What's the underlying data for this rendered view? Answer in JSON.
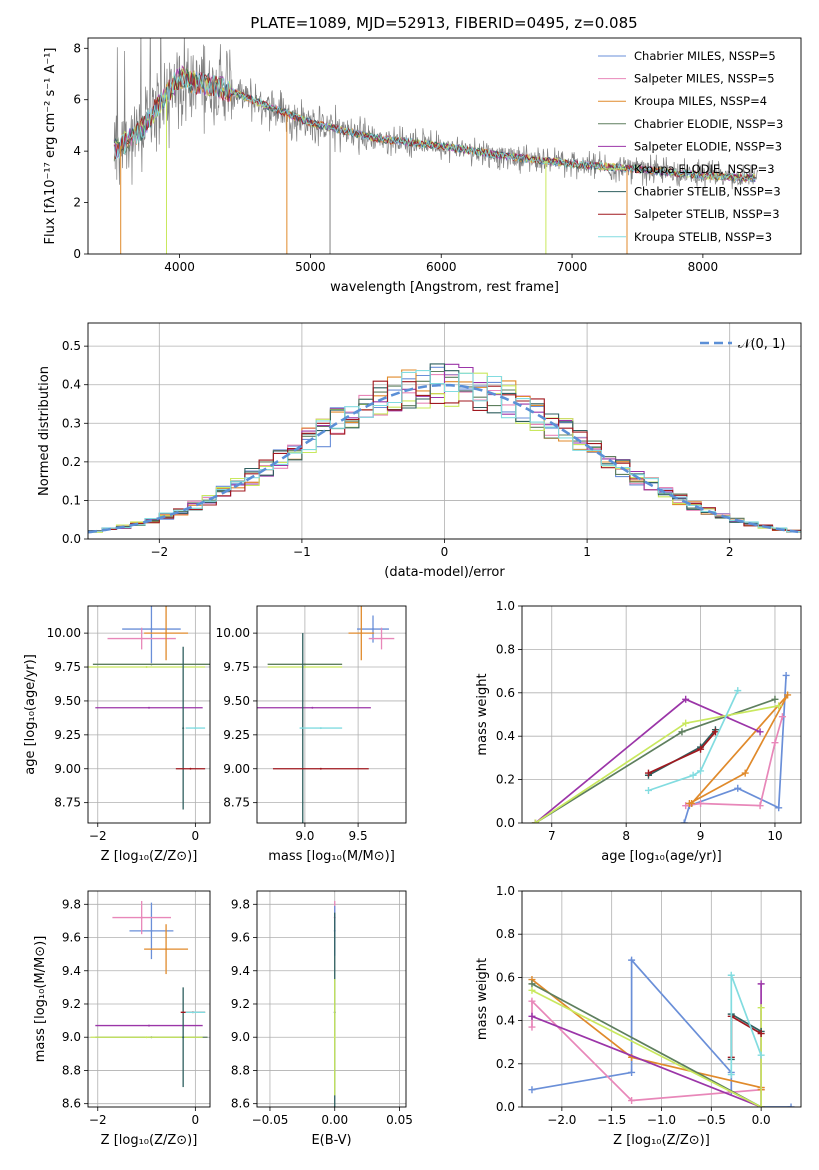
{
  "chart_data": [
    {
      "type": "line",
      "title": "PLATE=1089, MJD=52913, FIBERID=0495, z=0.085",
      "xlabel": "wavelength [Angstrom, rest frame]",
      "ylabel": "Flux [fλ10⁻¹⁷ erg cm⁻² s⁻¹ A⁻¹]",
      "xlim": [
        3300,
        8750
      ],
      "ylim": [
        0,
        8.4
      ],
      "xticks": [
        "4000",
        "5000",
        "6000",
        "7000",
        "8000"
      ],
      "yticks": [
        "0",
        "2",
        "4",
        "6",
        "8"
      ],
      "legend_position": "top-right",
      "series": [
        {
          "name": "Chabrier MILES, NSSP=5",
          "color": "#6a8fd8"
        },
        {
          "name": "Salpeter MILES, NSSP=5",
          "color": "#e887b9"
        },
        {
          "name": "Kroupa MILES, NSSP=4",
          "color": "#e08a2b"
        },
        {
          "name": "Chabrier ELODIE, NSSP=3",
          "color": "#5e7f5e"
        },
        {
          "name": "Salpeter ELODIE, NSSP=3",
          "color": "#9b35a8"
        },
        {
          "name": "Kroupa ELODIE, NSSP=3",
          "color": "#c9e85e"
        },
        {
          "name": "Chabrier STELIB, NSSP=3",
          "color": "#2f5f5f"
        },
        {
          "name": "Salpeter STELIB, NSSP=3",
          "color": "#a0181f"
        },
        {
          "name": "Kroupa STELIB, NSSP=3",
          "color": "#82dce0"
        }
      ],
      "continuum_model": {
        "x": [
          3500,
          3700,
          3900,
          4000,
          4100,
          4300,
          4500,
          5000,
          5500,
          6000,
          6500,
          7000,
          7500,
          8000,
          8400
        ],
        "y": [
          4.0,
          4.8,
          6.2,
          6.9,
          6.7,
          6.5,
          6.1,
          5.1,
          4.5,
          4.2,
          3.8,
          3.5,
          3.3,
          3.05,
          2.95
        ]
      }
    },
    {
      "type": "line",
      "xlabel": "(data-model)/error",
      "ylabel": "Normed distribution",
      "xlim": [
        -2.5,
        2.5
      ],
      "ylim": [
        0,
        0.56
      ],
      "xticks": [
        "−2",
        "−1",
        "0",
        "1",
        "2"
      ],
      "yticks": [
        "0.0",
        "0.1",
        "0.2",
        "0.3",
        "0.4",
        "0.5"
      ],
      "legend": "𝒩(0, 1)",
      "legend_position": "top-right",
      "bins_step": 0.1
    },
    {
      "type": "scatter",
      "xlabel": "Z [log₁₀(Z/Z⊙)]",
      "ylabel": "age  [log₁₀(age/yr)]",
      "xlim": [
        -2.2,
        0.3
      ],
      "ylim": [
        8.6,
        10.2
      ],
      "xticks": [
        "−2",
        "0"
      ],
      "yticks": [
        "8.75",
        "9.00",
        "9.25",
        "9.50",
        "9.75",
        "10.00"
      ],
      "points": [
        {
          "x": -0.9,
          "y": 10.03,
          "xerr": 0.6,
          "yerr": 0.25,
          "color": "#6a8fd8"
        },
        {
          "x": -1.1,
          "y": 9.96,
          "xerr": 0.7,
          "yerr": 0.08,
          "color": "#e887b9"
        },
        {
          "x": -0.6,
          "y": 10.0,
          "xerr": 0.45,
          "yerr": 0.2,
          "color": "#e08a2b"
        },
        {
          "x": -0.9,
          "y": 9.77,
          "xerr": 1.2,
          "yerr": 0.0,
          "color": "#5e7f5e"
        },
        {
          "x": -0.95,
          "y": 9.45,
          "xerr": 1.1,
          "yerr": 0.0,
          "color": "#9b35a8"
        },
        {
          "x": -1.0,
          "y": 9.75,
          "xerr": 1.2,
          "yerr": 0.0,
          "color": "#c9e85e"
        },
        {
          "x": -0.25,
          "y": 9.3,
          "xerr": 0.0,
          "yerr": 0.6,
          "color": "#2f5f5f"
        },
        {
          "x": -0.1,
          "y": 9.0,
          "xerr": 0.3,
          "yerr": 0.0,
          "color": "#a0181f"
        },
        {
          "x": 0.0,
          "y": 9.3,
          "xerr": 0.2,
          "yerr": 0.0,
          "color": "#82dce0"
        }
      ]
    },
    {
      "type": "scatter",
      "xlabel": "mass [log₁₀(M/M⊙)]",
      "xlim": [
        8.55,
        9.95
      ],
      "ylim": [
        8.6,
        10.2
      ],
      "xticks": [
        "9.0",
        "9.5"
      ],
      "yticks": [
        "8.75",
        "9.00",
        "9.25",
        "9.50",
        "9.75",
        "10.00"
      ],
      "points": [
        {
          "x": 9.64,
          "y": 10.03,
          "xerr": 0.15,
          "yerr": 0.1,
          "color": "#6a8fd8"
        },
        {
          "x": 9.72,
          "y": 9.96,
          "xerr": 0.12,
          "yerr": 0.08,
          "color": "#e887b9"
        },
        {
          "x": 9.53,
          "y": 10.0,
          "xerr": 0.12,
          "yerr": 0.2,
          "color": "#e08a2b"
        },
        {
          "x": 9.0,
          "y": 9.77,
          "xerr": 0.35,
          "yerr": 0.0,
          "color": "#5e7f5e"
        },
        {
          "x": 9.07,
          "y": 9.45,
          "xerr": 0.55,
          "yerr": 0.0,
          "color": "#9b35a8"
        },
        {
          "x": 9.0,
          "y": 9.75,
          "xerr": 0.35,
          "yerr": 0.0,
          "color": "#c9e85e"
        },
        {
          "x": 8.98,
          "y": 9.3,
          "xerr": 0.0,
          "yerr": 0.7,
          "color": "#2f5f5f"
        },
        {
          "x": 9.15,
          "y": 9.0,
          "xerr": 0.45,
          "yerr": 0.0,
          "color": "#a0181f"
        },
        {
          "x": 9.15,
          "y": 9.3,
          "xerr": 0.2,
          "yerr": 0.0,
          "color": "#82dce0"
        }
      ]
    },
    {
      "type": "line",
      "xlabel": "age  [log₁₀(age/yr)]",
      "ylabel": "mass weight",
      "xlim": [
        6.6,
        10.35
      ],
      "ylim": [
        0,
        1.0
      ],
      "xticks": [
        "7",
        "8",
        "9",
        "10"
      ],
      "yticks": [
        "0.0",
        "0.2",
        "0.4",
        "0.6",
        "0.8",
        "1.0"
      ],
      "series": [
        {
          "color": "#6a8fd8",
          "x": [
            8.78,
            8.85,
            9.5,
            10.05,
            10.15
          ],
          "y": [
            0.0,
            0.08,
            0.16,
            0.07,
            0.68
          ]
        },
        {
          "color": "#e887b9",
          "x": [
            8.8,
            9.0,
            9.8,
            10.0,
            10.1
          ],
          "y": [
            0.08,
            0.09,
            0.08,
            0.37,
            0.49
          ]
        },
        {
          "color": "#e08a2b",
          "x": [
            8.85,
            9.6,
            10.17,
            8.88
          ],
          "y": [
            0.09,
            0.23,
            0.59,
            0.09
          ]
        },
        {
          "color": "#5e7f5e",
          "x": [
            6.78,
            8.75,
            10.0
          ],
          "y": [
            0.0,
            0.42,
            0.57
          ]
        },
        {
          "color": "#9b35a8",
          "x": [
            6.78,
            8.8,
            9.8
          ],
          "y": [
            0.0,
            0.57,
            0.42
          ]
        },
        {
          "color": "#c9e85e",
          "x": [
            6.78,
            8.8,
            10.05
          ],
          "y": [
            0.0,
            0.46,
            0.54
          ]
        },
        {
          "color": "#2f5f5f",
          "x": [
            8.3,
            9.0,
            9.2
          ],
          "y": [
            0.22,
            0.35,
            0.43
          ]
        },
        {
          "color": "#a0181f",
          "x": [
            8.3,
            9.0,
            9.2
          ],
          "y": [
            0.23,
            0.34,
            0.42
          ]
        },
        {
          "color": "#82dce0",
          "x": [
            8.3,
            8.9,
            9.0,
            9.5
          ],
          "y": [
            0.15,
            0.22,
            0.24,
            0.61
          ]
        }
      ]
    },
    {
      "type": "scatter",
      "xlabel": "Z [log₁₀(Z/Z⊙)]",
      "ylabel": "mass [log₁₀(M/M⊙)]",
      "xlim": [
        -2.2,
        0.3
      ],
      "ylim": [
        8.58,
        9.88
      ],
      "xticks": [
        "−2",
        "0"
      ],
      "yticks": [
        "8.6",
        "8.8",
        "9.0",
        "9.2",
        "9.4",
        "9.6",
        "9.8"
      ],
      "points": [
        {
          "x": -0.9,
          "y": 9.64,
          "xerr": 0.45,
          "yerr": 0.17,
          "color": "#6a8fd8"
        },
        {
          "x": -1.1,
          "y": 9.72,
          "xerr": 0.6,
          "yerr": 0.1,
          "color": "#e887b9"
        },
        {
          "x": -0.6,
          "y": 9.53,
          "xerr": 0.45,
          "yerr": 0.15,
          "color": "#e08a2b"
        },
        {
          "x": -0.9,
          "y": 9.0,
          "xerr": 1.15,
          "yerr": 0.0,
          "color": "#5e7f5e"
        },
        {
          "x": -0.95,
          "y": 9.07,
          "xerr": 1.1,
          "yerr": 0.0,
          "color": "#9b35a8"
        },
        {
          "x": -1.0,
          "y": 9.0,
          "xerr": 1.15,
          "yerr": 0.0,
          "color": "#c9e85e"
        },
        {
          "x": -0.25,
          "y": 9.0,
          "xerr": 0.0,
          "yerr": 0.3,
          "color": "#2f5f5f"
        },
        {
          "x": -0.05,
          "y": 9.15,
          "xerr": 0.25,
          "yerr": 0.0,
          "color": "#a0181f"
        },
        {
          "x": 0.0,
          "y": 9.15,
          "xerr": 0.2,
          "yerr": 0.0,
          "color": "#82dce0"
        }
      ]
    },
    {
      "type": "scatter",
      "xlabel": "E(B-V)",
      "xlim": [
        -0.06,
        0.055
      ],
      "ylim": [
        8.58,
        9.88
      ],
      "xticks": [
        "−0.05",
        "0.00",
        "0.05"
      ],
      "yticks": [
        "8.6",
        "8.8",
        "9.0",
        "9.2",
        "9.4",
        "9.6",
        "9.8"
      ],
      "points": [
        {
          "x": 0.0,
          "y": 9.72,
          "yerr": 0.1,
          "color": "#e887b9"
        },
        {
          "x": 0.0,
          "y": 9.64,
          "yerr": 0.15,
          "color": "#6a8fd8"
        },
        {
          "x": 0.0,
          "y": 9.15,
          "yerr": 0.6,
          "color": "#2f5f5f"
        },
        {
          "x": 0.0,
          "y": 9.0,
          "yerr": 0.35,
          "color": "#c9e85e"
        }
      ]
    },
    {
      "type": "line",
      "xlabel": "Z [log₁₀(Z/Z⊙)]",
      "ylabel": "mass weight",
      "xlim": [
        -2.4,
        0.4
      ],
      "ylim": [
        0,
        1.0
      ],
      "xticks": [
        "−2.0",
        "−1.5",
        "−1.0",
        "−0.5",
        "0.0"
      ],
      "yticks": [
        "0.0",
        "0.2",
        "0.4",
        "0.6",
        "0.8",
        "1.0"
      ],
      "series": [
        {
          "color": "#6a8fd8",
          "x": [
            -2.3,
            -1.3,
            -1.3,
            -0.3,
            -0.3,
            0.0,
            0.3
          ],
          "y": [
            0.08,
            0.16,
            0.68,
            0.16,
            0.07,
            0.0,
            0.0
          ]
        },
        {
          "color": "#e887b9",
          "x": [
            -2.3,
            -2.3,
            -1.3,
            0.0,
            0.0,
            0.0
          ],
          "y": [
            0.37,
            0.49,
            0.03,
            0.08,
            0.09,
            0.08
          ]
        },
        {
          "color": "#e08a2b",
          "x": [
            -2.3,
            -1.3,
            0.0,
            0.0
          ],
          "y": [
            0.59,
            0.23,
            0.09,
            0.08
          ]
        },
        {
          "color": "#5e7f5e",
          "x": [
            -2.3,
            0.0
          ],
          "y": [
            0.57,
            0.0
          ]
        },
        {
          "color": "#9b35a8",
          "x": [
            -2.3,
            0.0,
            0.0
          ],
          "y": [
            0.42,
            0.0,
            0.57
          ]
        },
        {
          "color": "#c9e85e",
          "x": [
            -2.3,
            0.0,
            0.0
          ],
          "y": [
            0.54,
            0.0,
            0.46
          ]
        },
        {
          "color": "#2f5f5f",
          "x": [
            -0.3,
            -0.3,
            0.0
          ],
          "y": [
            0.22,
            0.43,
            0.35
          ]
        },
        {
          "color": "#a0181f",
          "x": [
            -0.3,
            -0.3,
            0.0
          ],
          "y": [
            0.23,
            0.42,
            0.34
          ]
        },
        {
          "color": "#82dce0",
          "x": [
            -0.3,
            -0.3,
            0.0
          ],
          "y": [
            0.15,
            0.61,
            0.24
          ]
        }
      ]
    }
  ]
}
